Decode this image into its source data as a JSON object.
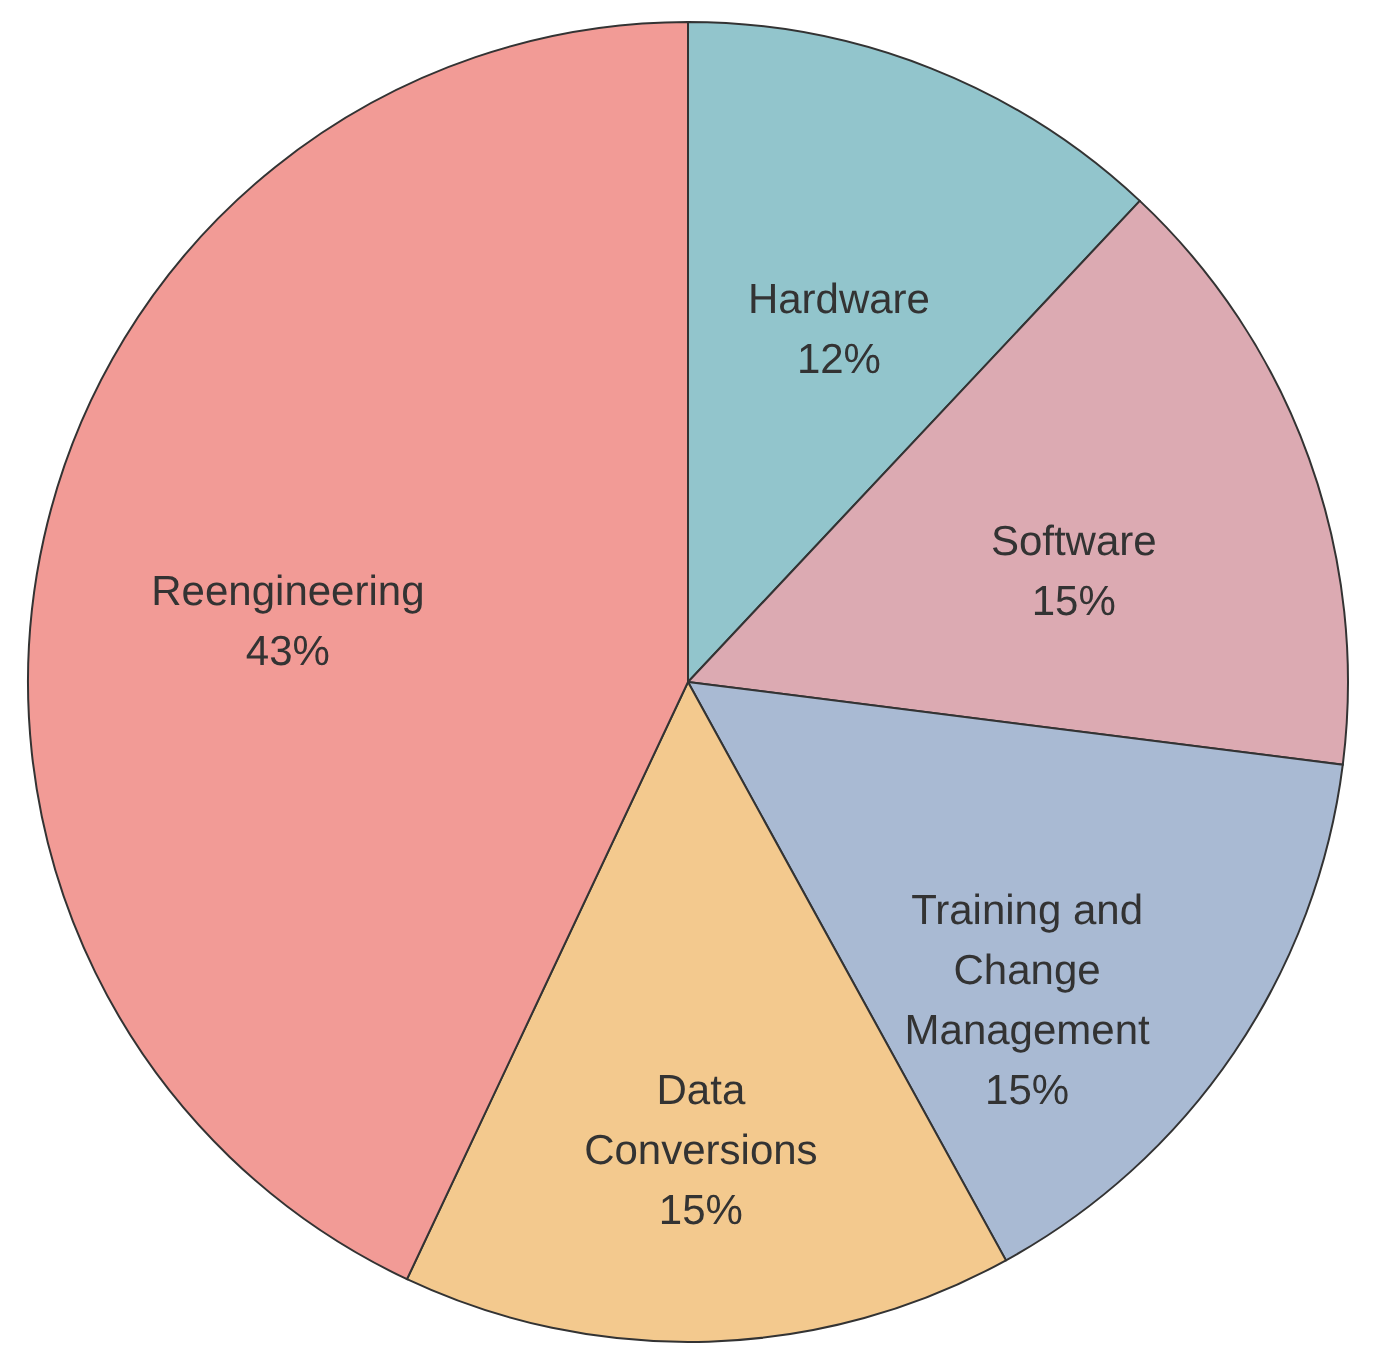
{
  "chart_data": {
    "type": "pie",
    "categories": [
      "Hardware",
      "Software",
      "Training and\nChange\nManagement",
      "Data\nConversions",
      "Reengineering"
    ],
    "values": [
      12,
      15,
      15,
      15,
      43
    ],
    "value_labels": [
      "12%",
      "15%",
      "15%",
      "15%",
      "43%"
    ],
    "colors": [
      "#92c5cc",
      "#dcaab2",
      "#a9bad3",
      "#f3c98e",
      "#f29b96"
    ]
  }
}
